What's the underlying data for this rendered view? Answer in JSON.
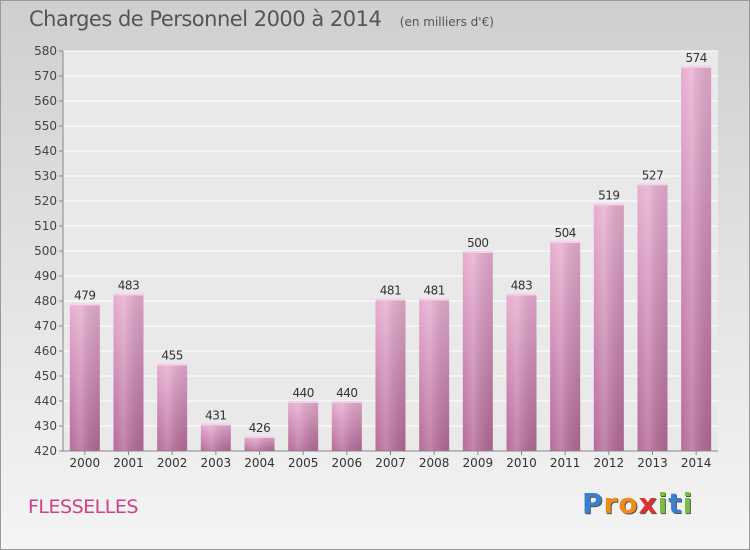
{
  "header": {
    "title": "Charges de Personnel 2000 à 2014",
    "unit": "(en milliers d'€)"
  },
  "commune": "FLESSELLES",
  "logo": {
    "letters": [
      "P",
      "r",
      "o",
      "x",
      "i",
      "t",
      "i"
    ],
    "colors": [
      "#3a7fd0",
      "#f08a1a",
      "#f08a1a",
      "#e03030",
      "#7ac040",
      "#3a7fd0",
      "#7ac040"
    ]
  },
  "chart_data": {
    "type": "bar",
    "title": "Charges de Personnel 2000 à 2014",
    "subtitle": "(en milliers d'€)",
    "xlabel": "",
    "ylabel": "",
    "categories": [
      "2000",
      "2001",
      "2002",
      "2003",
      "2004",
      "2005",
      "2006",
      "2007",
      "2008",
      "2009",
      "2010",
      "2011",
      "2012",
      "2013",
      "2014"
    ],
    "values": [
      479,
      483,
      455,
      431,
      426,
      440,
      440,
      481,
      481,
      500,
      483,
      504,
      519,
      527,
      574
    ],
    "data_labels": [
      "479",
      "483",
      "455",
      "431",
      "426",
      "440",
      "440",
      "481",
      "481",
      "500",
      "483",
      "504",
      "519",
      "527",
      "574"
    ],
    "ylim": [
      420,
      580
    ],
    "yticks": [
      420,
      430,
      440,
      450,
      460,
      470,
      480,
      490,
      500,
      510,
      520,
      530,
      540,
      550,
      560,
      570,
      580
    ],
    "grid": true,
    "legend": "none",
    "bar_color": "#d9a0c4"
  }
}
